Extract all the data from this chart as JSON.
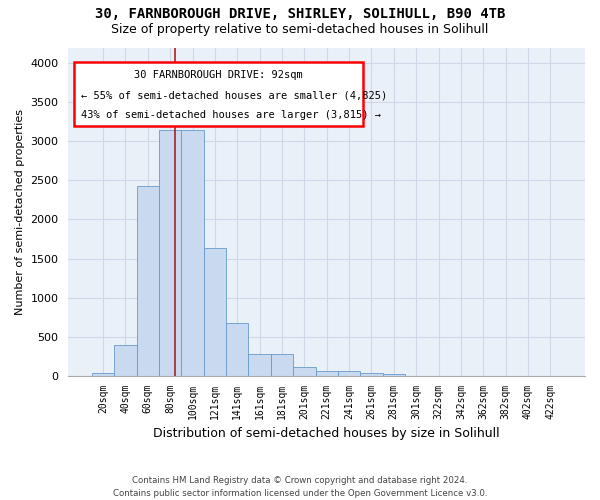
{
  "title_line1": "30, FARNBOROUGH DRIVE, SHIRLEY, SOLIHULL, B90 4TB",
  "title_line2": "Size of property relative to semi-detached houses in Solihull",
  "xlabel": "Distribution of semi-detached houses by size in Solihull",
  "ylabel": "Number of semi-detached properties",
  "footer_line1": "Contains HM Land Registry data © Crown copyright and database right 2024.",
  "footer_line2": "Contains public sector information licensed under the Open Government Licence v3.0.",
  "annotation_title": "30 FARNBOROUGH DRIVE: 92sqm",
  "annotation_line2": "← 55% of semi-detached houses are smaller (4,825)",
  "annotation_line3": "43% of semi-detached houses are larger (3,815) →",
  "bar_color": "#c8d9f0",
  "bar_edge_color": "#6699cc",
  "vline_color": "#aa2222",
  "grid_color": "#d0d8e8",
  "bg_color": "#eaf0f8",
  "ylim": [
    0,
    4200
  ],
  "yticks": [
    0,
    500,
    1000,
    1500,
    2000,
    2500,
    3000,
    3500,
    4000
  ],
  "categories": [
    "20sqm",
    "40sqm",
    "60sqm",
    "80sqm",
    "100sqm",
    "121sqm",
    "141sqm",
    "161sqm",
    "181sqm",
    "201sqm",
    "221sqm",
    "241sqm",
    "261sqm",
    "281sqm",
    "301sqm",
    "322sqm",
    "342sqm",
    "362sqm",
    "382sqm",
    "402sqm",
    "422sqm"
  ],
  "values": [
    30,
    395,
    2425,
    3150,
    3150,
    1640,
    670,
    285,
    285,
    110,
    60,
    55,
    40,
    20,
    0,
    0,
    0,
    0,
    0,
    0,
    0
  ],
  "vline_x": 3.2,
  "title1_fontsize": 10,
  "title2_fontsize": 9,
  "ylabel_fontsize": 8,
  "xlabel_fontsize": 9,
  "tick_fontsize": 7
}
